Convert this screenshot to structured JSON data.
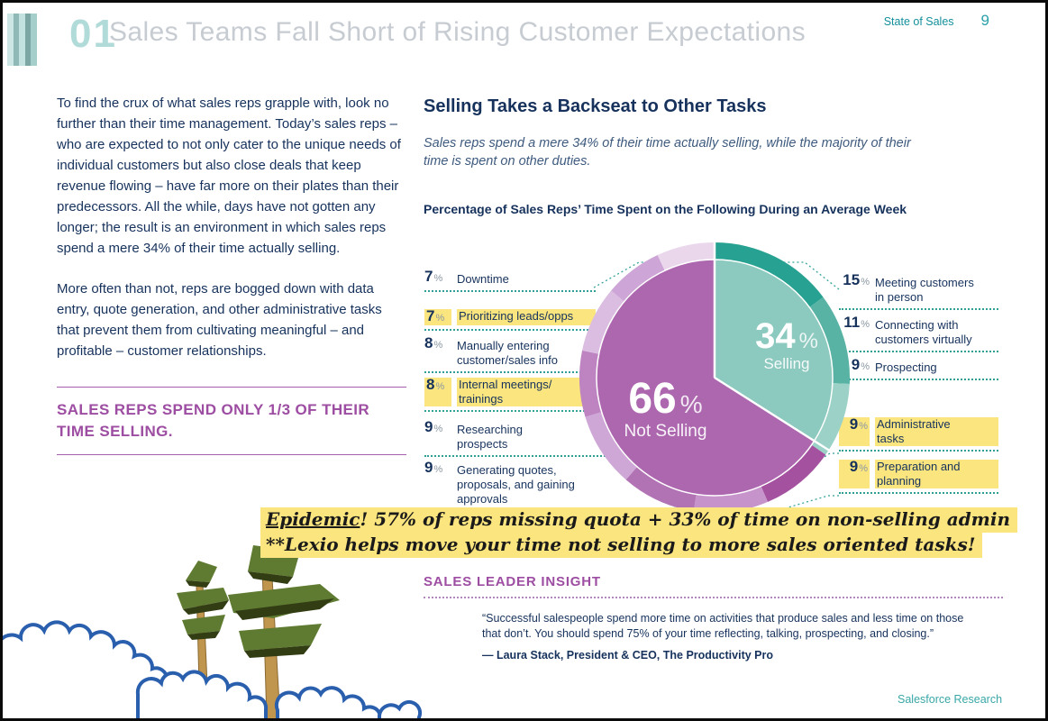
{
  "header": {
    "section_number": "01",
    "title": "Sales Teams Fall Short of Rising Customer Expectations",
    "report_name": "State of Sales",
    "page_number": "9"
  },
  "left_column": {
    "paragraph1": "To find the crux of what sales reps grapple with, look no further than their time management. Today’s sales reps – who are expected to not only cater to the unique needs of individual customers but also close deals that keep revenue flowing – have far more on their plates than their predecessors. All the while, days have not gotten any longer; the result is an environment in which sales reps spend a mere 34% of their time actually selling.",
    "paragraph2": "More often than not, reps are bogged down with data entry, quote generation, and other administrative tasks that prevent them from cultivating meaningful – and profitable – customer relationships.",
    "callout": "SALES REPS SPEND ONLY 1/3 OF THEIR TIME SELLING."
  },
  "main": {
    "heading": "Selling Takes a Backseat to Other Tasks",
    "subheading": "Sales reps spend a mere 34% of their time actually selling, while the majority of their time is spent on other duties.",
    "chart_title": "Percentage of Sales Reps’ Time Spent on the Following During an Average Week"
  },
  "chart_data": {
    "type": "pie",
    "title": "Percentage of Sales Reps’ Time Spent on the Following During an Average Week",
    "center_labels": [
      {
        "value": "34",
        "unit": "%",
        "label": "Selling"
      },
      {
        "value": "66",
        "unit": "%",
        "label": "Not Selling"
      }
    ],
    "slices": [
      {
        "name": "Selling",
        "value": 34,
        "color": "#8cc9bf"
      },
      {
        "name": "Not Selling",
        "value": 66,
        "color": "#ad67af"
      }
    ],
    "ring_segments": [
      {
        "name": "Meeting customers in person",
        "value": 15,
        "color": "#27a191"
      },
      {
        "name": "Connecting with customers virtually",
        "value": 11,
        "color": "#58b3a5"
      },
      {
        "name": "Prospecting",
        "value": 9,
        "color": "#9bd1c6"
      },
      {
        "name": "Administrative tasks",
        "value": 9,
        "color": "#a4519f"
      },
      {
        "name": "Preparation and planning",
        "value": 9,
        "color": "#c693ca"
      },
      {
        "name": "Generating quotes, proposals, and gaining approvals",
        "value": 9,
        "color": "#b273b5"
      },
      {
        "name": "Researching prospects",
        "value": 9,
        "color": "#cfa7d7"
      },
      {
        "name": "Internal meetings/trainings",
        "value": 8,
        "color": "#bd84c1"
      },
      {
        "name": "Manually entering customer/sales info",
        "value": 8,
        "color": "#dabde1"
      },
      {
        "name": "Prioritizing leads/opps",
        "value": 7,
        "color": "#cda5d6"
      },
      {
        "name": "Downtime",
        "value": 7,
        "color": "#ead7ec"
      }
    ],
    "left_labels": [
      {
        "value": 7,
        "label": "Downtime",
        "highlighted": false
      },
      {
        "value": 7,
        "label": "Prioritizing leads/opps",
        "highlighted": true
      },
      {
        "value": 8,
        "label": "Manually entering\ncustomer/sales info",
        "highlighted": false
      },
      {
        "value": 8,
        "label": "Internal meetings/\ntrainings",
        "highlighted": true
      },
      {
        "value": 9,
        "label": "Researching\nprospects",
        "highlighted": false
      },
      {
        "value": 9,
        "label": "Generating quotes,\nproposals, and gaining\napprovals",
        "highlighted": false
      }
    ],
    "right_labels": [
      {
        "value": 15,
        "label": "Meeting customers\nin person",
        "highlighted": false
      },
      {
        "value": 11,
        "label": "Connecting with\ncustomers virtually",
        "highlighted": false
      },
      {
        "value": 9,
        "label": "Prospecting",
        "highlighted": false
      },
      {
        "value": 9,
        "label": "Administrative\ntasks",
        "highlighted": true
      },
      {
        "value": 9,
        "label": "Preparation and\nplanning",
        "highlighted": true
      }
    ]
  },
  "annotation": {
    "line1_lead": "Epidemic",
    "line1_rest": "! 57% of reps missing quota  + 33% of time on non-selling admin",
    "line2": "**Lexio helps move your time not selling to more sales oriented tasks!"
  },
  "insight": {
    "heading": "SALES LEADER INSIGHT",
    "quote_line1": "“Successful salespeople spend more time on activities that produce sales and less time on those",
    "quote_line2": "that don’t. You should spend 75% of your time reflecting, talking, prospecting, and closing.”",
    "attribution": "— Laura Stack, President & CEO, The Productivity Pro"
  },
  "footer": {
    "brand": "Salesforce Research"
  },
  "colors": {
    "accent_teal": "#2fa093",
    "accent_purple": "#9d4da2",
    "highlight_yellow": "#fbe57e",
    "body_navy": "#16325c",
    "title_gray": "#c7ccd2"
  }
}
